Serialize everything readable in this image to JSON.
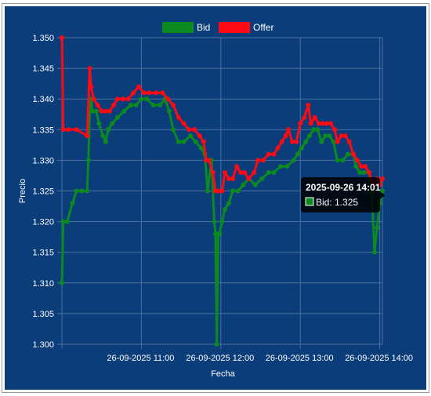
{
  "colors": {
    "background": "#0a3d7a",
    "grid": "#4d719e",
    "axis_text": "#ffffff",
    "bid": "#0b8a1f",
    "offer": "#ff0a14",
    "tooltip_bg": "#000000"
  },
  "chart_data": {
    "type": "line",
    "title": "",
    "xlabel": "Fecha",
    "ylabel": "Precio",
    "ylim": [
      1.3,
      1.35
    ],
    "y_ticks": [
      "1.300",
      "1.305",
      "1.310",
      "1.315",
      "1.320",
      "1.325",
      "1.330",
      "1.335",
      "1.340",
      "1.345",
      "1.350"
    ],
    "x_ticks": [
      {
        "label": "26-09-2025 11:00",
        "t": 60
      },
      {
        "label": "26-09-2025 12:00",
        "t": 120
      },
      {
        "label": "26-09-2025 13:00",
        "t": 180
      },
      {
        "label": "26-09-2025 14:00",
        "t": 240
      }
    ],
    "x_range": [
      0,
      242
    ],
    "grid": true,
    "legend_position": "top-center",
    "series": [
      {
        "name": "Bid",
        "color_key": "bid",
        "points": [
          [
            0,
            1.31
          ],
          [
            1,
            1.32
          ],
          [
            4,
            1.32
          ],
          [
            8,
            1.323
          ],
          [
            11,
            1.325
          ],
          [
            15,
            1.325
          ],
          [
            19,
            1.325
          ],
          [
            20,
            1.33
          ],
          [
            21,
            1.338
          ],
          [
            22,
            1.34
          ],
          [
            23,
            1.338
          ],
          [
            26,
            1.338
          ],
          [
            28,
            1.336
          ],
          [
            31,
            1.334
          ],
          [
            33,
            1.333
          ],
          [
            35,
            1.335
          ],
          [
            38,
            1.336
          ],
          [
            42,
            1.337
          ],
          [
            47,
            1.338
          ],
          [
            52,
            1.339
          ],
          [
            56,
            1.339
          ],
          [
            60,
            1.34
          ],
          [
            64,
            1.34
          ],
          [
            69,
            1.339
          ],
          [
            74,
            1.339
          ],
          [
            78,
            1.34
          ],
          [
            81,
            1.338
          ],
          [
            84,
            1.335
          ],
          [
            88,
            1.333
          ],
          [
            92,
            1.333
          ],
          [
            97,
            1.334
          ],
          [
            101,
            1.333
          ],
          [
            105,
            1.332
          ],
          [
            108,
            1.331
          ],
          [
            110,
            1.325
          ],
          [
            113,
            1.33
          ],
          [
            115,
            1.32
          ],
          [
            116,
            1.318
          ],
          [
            117,
            1.3
          ],
          [
            118,
            1.318
          ],
          [
            119,
            1.318
          ],
          [
            121,
            1.32
          ],
          [
            123,
            1.322
          ],
          [
            126,
            1.323
          ],
          [
            129,
            1.325
          ],
          [
            133,
            1.325
          ],
          [
            137,
            1.326
          ],
          [
            141,
            1.327
          ],
          [
            146,
            1.326
          ],
          [
            151,
            1.327
          ],
          [
            156,
            1.328
          ],
          [
            160,
            1.328
          ],
          [
            165,
            1.329
          ],
          [
            170,
            1.329
          ],
          [
            175,
            1.33
          ],
          [
            178,
            1.331
          ],
          [
            181,
            1.332
          ],
          [
            184,
            1.333
          ],
          [
            187,
            1.334
          ],
          [
            190,
            1.335
          ],
          [
            193,
            1.335
          ],
          [
            196,
            1.333
          ],
          [
            199,
            1.334
          ],
          [
            202,
            1.334
          ],
          [
            205,
            1.333
          ],
          [
            208,
            1.33
          ],
          [
            212,
            1.33
          ],
          [
            216,
            1.331
          ],
          [
            220,
            1.331
          ],
          [
            222,
            1.329
          ],
          [
            225,
            1.328
          ],
          [
            228,
            1.328
          ],
          [
            232,
            1.328
          ],
          [
            234,
            1.325
          ],
          [
            236,
            1.315
          ],
          [
            238,
            1.319
          ],
          [
            240,
            1.323
          ],
          [
            242,
            1.325
          ]
        ]
      },
      {
        "name": "Offer",
        "color_key": "offer",
        "points": [
          [
            0,
            1.35
          ],
          [
            1,
            1.335
          ],
          [
            5,
            1.335
          ],
          [
            11,
            1.335
          ],
          [
            19,
            1.334
          ],
          [
            21,
            1.345
          ],
          [
            22,
            1.342
          ],
          [
            24,
            1.34
          ],
          [
            27,
            1.339
          ],
          [
            30,
            1.338
          ],
          [
            33,
            1.338
          ],
          [
            36,
            1.338
          ],
          [
            39,
            1.339
          ],
          [
            42,
            1.34
          ],
          [
            46,
            1.34
          ],
          [
            50,
            1.34
          ],
          [
            54,
            1.341
          ],
          [
            58,
            1.342
          ],
          [
            62,
            1.341
          ],
          [
            66,
            1.341
          ],
          [
            71,
            1.341
          ],
          [
            76,
            1.341
          ],
          [
            80,
            1.34
          ],
          [
            84,
            1.339
          ],
          [
            88,
            1.337
          ],
          [
            92,
            1.336
          ],
          [
            96,
            1.335
          ],
          [
            100,
            1.335
          ],
          [
            104,
            1.334
          ],
          [
            107,
            1.333
          ],
          [
            109,
            1.33
          ],
          [
            111,
            1.33
          ],
          [
            114,
            1.328
          ],
          [
            116,
            1.325
          ],
          [
            118,
            1.325
          ],
          [
            121,
            1.325
          ],
          [
            123,
            1.328
          ],
          [
            126,
            1.327
          ],
          [
            129,
            1.327
          ],
          [
            132,
            1.329
          ],
          [
            135,
            1.328
          ],
          [
            138,
            1.328
          ],
          [
            141,
            1.327
          ],
          [
            145,
            1.328
          ],
          [
            148,
            1.33
          ],
          [
            152,
            1.33
          ],
          [
            156,
            1.331
          ],
          [
            160,
            1.331
          ],
          [
            163,
            1.332
          ],
          [
            166,
            1.333
          ],
          [
            169,
            1.334
          ],
          [
            171,
            1.335
          ],
          [
            174,
            1.333
          ],
          [
            177,
            1.333
          ],
          [
            180,
            1.336
          ],
          [
            183,
            1.337
          ],
          [
            186,
            1.339
          ],
          [
            188,
            1.336
          ],
          [
            191,
            1.337
          ],
          [
            194,
            1.336
          ],
          [
            197,
            1.336
          ],
          [
            200,
            1.336
          ],
          [
            203,
            1.336
          ],
          [
            206,
            1.335
          ],
          [
            208,
            1.333
          ],
          [
            211,
            1.334
          ],
          [
            214,
            1.334
          ],
          [
            217,
            1.333
          ],
          [
            220,
            1.331
          ],
          [
            223,
            1.33
          ],
          [
            226,
            1.329
          ],
          [
            229,
            1.329
          ],
          [
            232,
            1.328
          ],
          [
            235,
            1.326
          ],
          [
            238,
            1.327
          ],
          [
            240,
            1.326
          ],
          [
            242,
            1.327
          ]
        ]
      }
    ],
    "tooltip": {
      "title": "2025-09-26 14:01",
      "series": "Bid",
      "value": "1.325",
      "body": "Bid: 1.325",
      "anchor": [
        241,
        1.325
      ]
    }
  }
}
